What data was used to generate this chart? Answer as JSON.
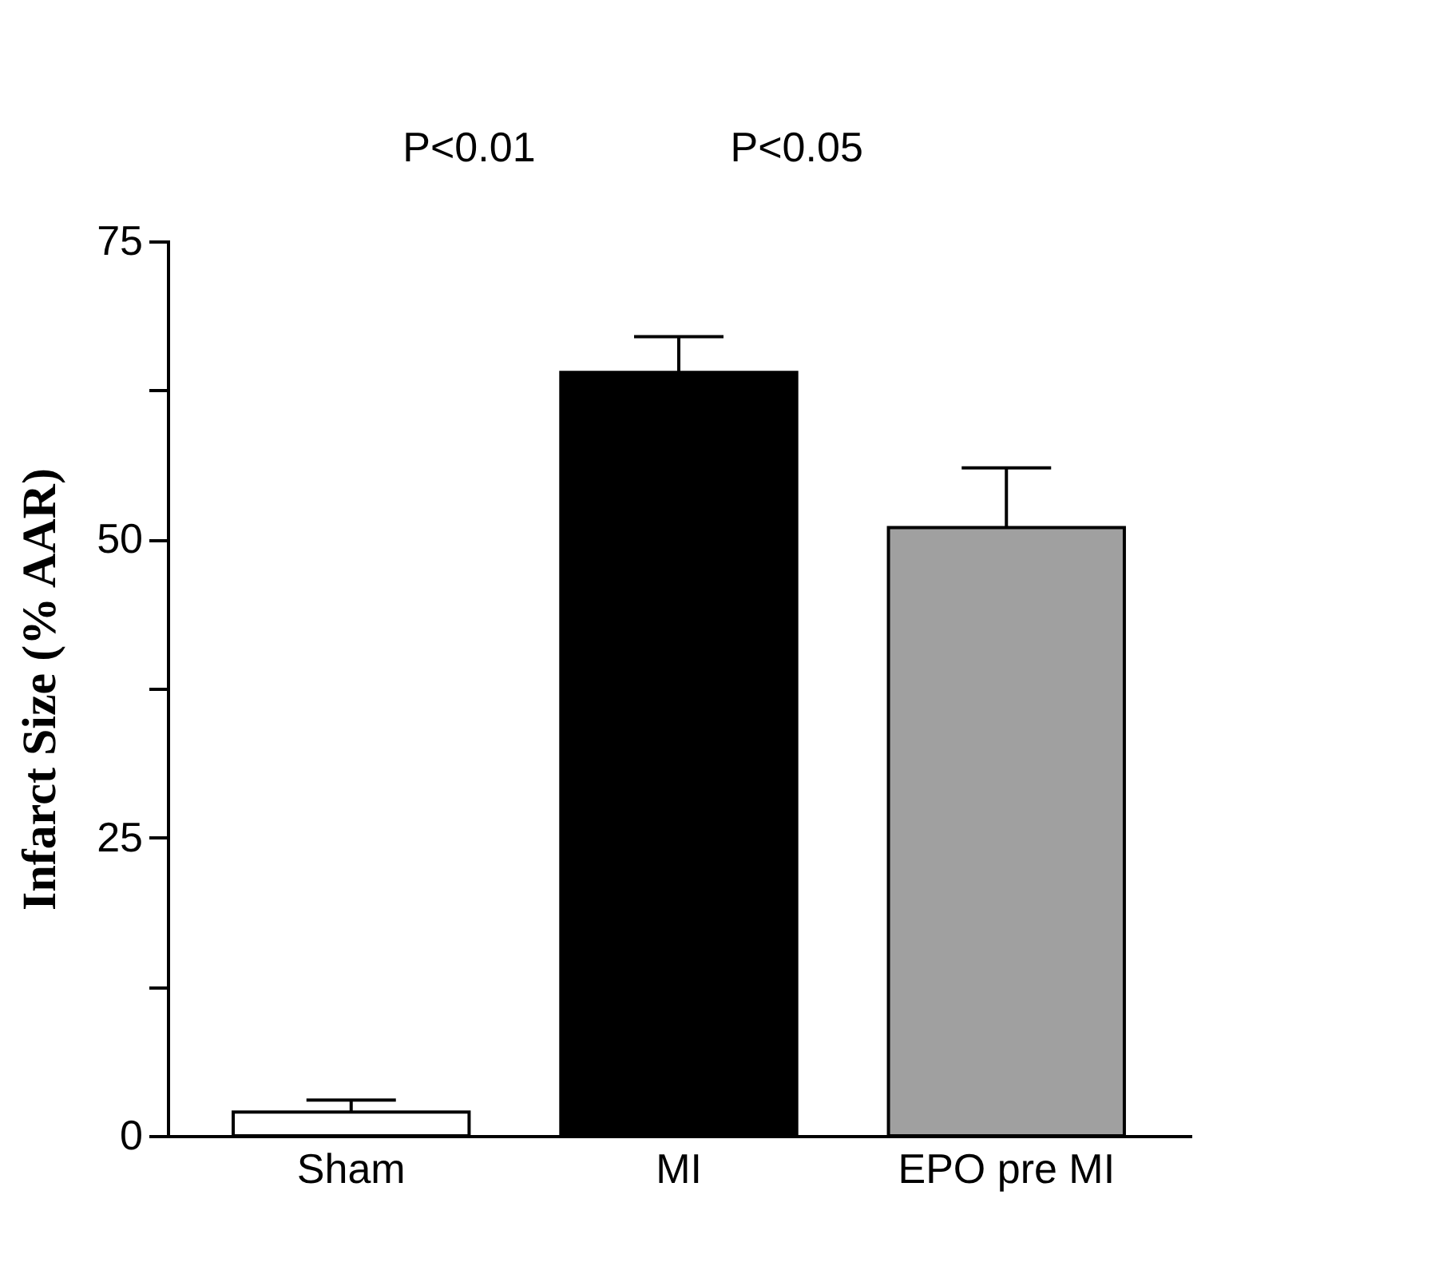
{
  "chart_data": {
    "type": "bar",
    "ylabel": "Infarct Size (% AAR)",
    "categories": [
      "Sham",
      "MI",
      "EPO pre MI"
    ],
    "values": [
      2,
      64,
      51
    ],
    "colors": [
      "#ffffff",
      "#000000",
      "#a0a0a0"
    ],
    "errors": [
      [
        2,
        3
      ],
      [
        64,
        67
      ],
      [
        51,
        56
      ]
    ],
    "ylim": [
      0,
      75
    ],
    "yticks": [
      0,
      {
        "value": 12.5,
        "label": null
      },
      25,
      {
        "value": 37.5,
        "label": null
      },
      50,
      {
        "value": 62.5,
        "label": null
      },
      75
    ],
    "annotations": [
      "P<0.01",
      "P<0.05"
    ]
  }
}
